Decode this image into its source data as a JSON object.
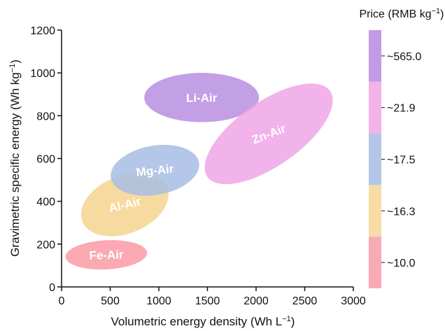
{
  "chart_data": {
    "type": "scatter",
    "title": "",
    "xlabel": "Volumetric energy density (Wh L",
    "xlabel_sup": "−1",
    "xlabel_end": ")",
    "ylabel": "Gravimetric specific energy (Wh kg",
    "ylabel_sup": "−1",
    "ylabel_end": ")",
    "xlim": [
      0,
      3000
    ],
    "ylim": [
      0,
      1200
    ],
    "xticks": [
      0,
      500,
      1000,
      1500,
      2000,
      2500,
      3000
    ],
    "yticks": [
      0,
      200,
      400,
      600,
      800,
      1000,
      1200
    ],
    "grid": false,
    "regions": [
      {
        "label": "Fe-Air",
        "cx": 460,
        "cy": 150,
        "rx": 420,
        "ry": 68,
        "angle_deg": -3,
        "color": "#fa9aa6"
      },
      {
        "label": "Al-Air",
        "cx": 650,
        "cy": 385,
        "rx": 470,
        "ry": 135,
        "angle_deg": -22,
        "color": "#f6d48e"
      },
      {
        "label": "Mg-Air",
        "cx": 960,
        "cy": 545,
        "rx": 460,
        "ry": 115,
        "angle_deg": -10,
        "color": "#a8bde4"
      },
      {
        "label": "Li-Air",
        "cx": 1440,
        "cy": 885,
        "rx": 590,
        "ry": 115,
        "angle_deg": 0,
        "color": "#b98ee0"
      },
      {
        "label": "Zn-Air",
        "cx": 2130,
        "cy": 715,
        "rx": 770,
        "ry": 150,
        "angle_deg": -35,
        "color": "#f0a5e6"
      }
    ],
    "colorbar": {
      "title": "Price (RMB kg",
      "title_sup": "−1",
      "title_end": ")",
      "bands": [
        {
          "label": "~565.0",
          "color": "#c39ae6"
        },
        {
          "label": "~21.9",
          "color": "#f4b3e8"
        },
        {
          "label": "~17.5",
          "color": "#b3c6e8"
        },
        {
          "label": "~16.3",
          "color": "#f7dca6"
        },
        {
          "label": "~10.0",
          "color": "#f9aab4"
        }
      ]
    }
  }
}
